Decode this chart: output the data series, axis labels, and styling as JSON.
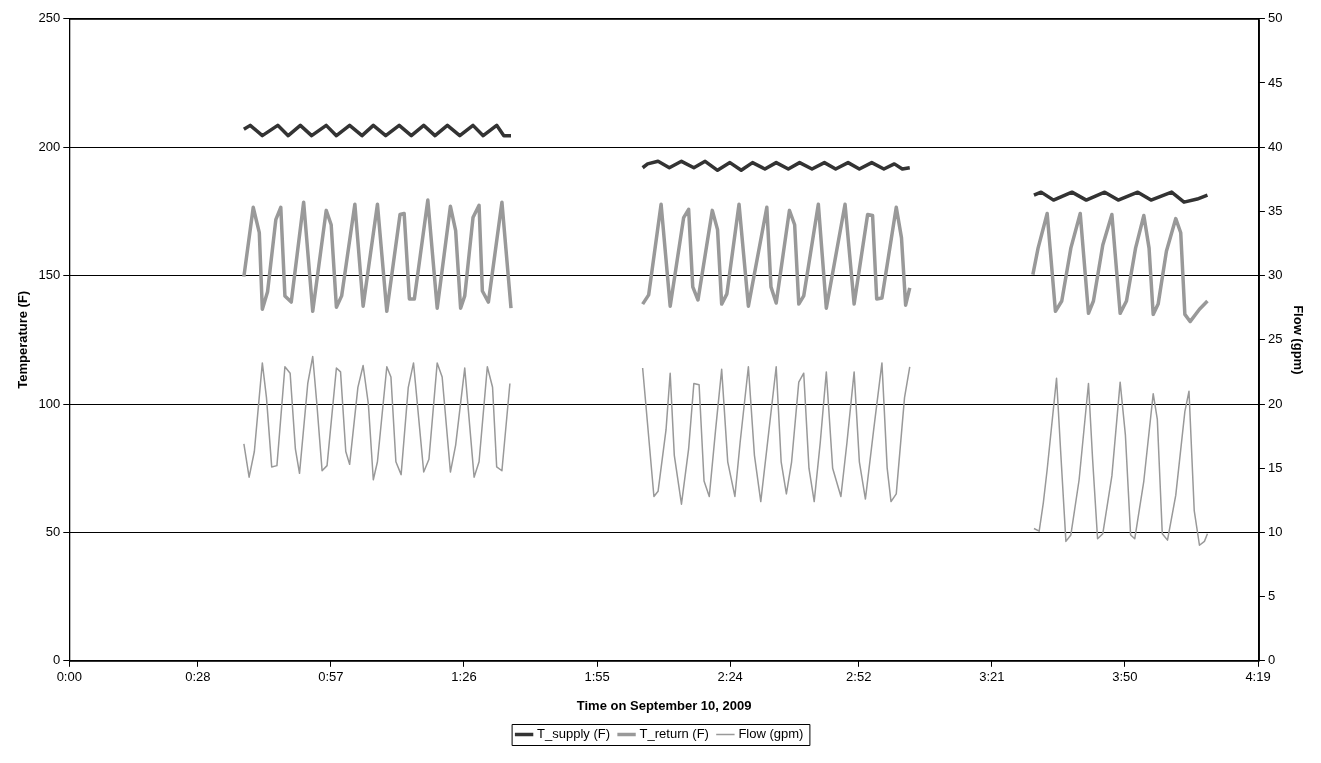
{
  "chart_data": {
    "type": "line",
    "xlabel": "Time on September 10, 2009",
    "ylabel": "Temperature (F)",
    "y2label": "Flow (gpm)",
    "xlim": [
      0,
      4.32
    ],
    "xticks": [
      {
        "value": 0,
        "label": "0:00"
      },
      {
        "value": 0.4667,
        "label": "0:28"
      },
      {
        "value": 0.95,
        "label": "0:57"
      },
      {
        "value": 1.4333,
        "label": "1:26"
      },
      {
        "value": 1.9167,
        "label": "1:55"
      },
      {
        "value": 2.4,
        "label": "2:24"
      },
      {
        "value": 2.8667,
        "label": "2:52"
      },
      {
        "value": 3.35,
        "label": "3:21"
      },
      {
        "value": 3.8333,
        "label": "3:50"
      },
      {
        "value": 4.3167,
        "label": "4:19"
      }
    ],
    "ylim": [
      0,
      250
    ],
    "yticks": [
      0,
      50,
      100,
      150,
      200,
      250
    ],
    "y2lim": [
      0,
      50
    ],
    "y2ticks": [
      0,
      5,
      10,
      15,
      20,
      25,
      30,
      35,
      40,
      45,
      50
    ],
    "grid": "y",
    "legend": "bottom",
    "marker": "none",
    "series": [
      {
        "name": "T_supply (F)",
        "color": "#333333",
        "x": [
          0.634,
          0.657,
          0.701,
          0.757,
          0.795,
          0.839,
          0.88,
          0.933,
          0.97,
          1.018,
          1.063,
          1.104,
          1.149,
          1.198,
          1.242,
          1.287,
          1.328,
          1.373,
          1.418,
          1.466,
          1.503,
          1.552,
          1.578,
          1.604,
          1.8,
          2.082,
          2.1,
          2.138,
          2.179,
          2.223,
          2.268,
          2.309,
          2.354,
          2.399,
          2.44,
          2.481,
          2.526,
          2.567,
          2.611,
          2.652,
          2.697,
          2.742,
          2.783,
          2.828,
          2.869,
          2.914,
          2.958,
          2.996,
          3.025,
          3.052,
          3.2,
          3.503,
          3.529,
          3.574,
          3.641,
          3.693,
          3.76,
          3.809,
          3.88,
          3.928,
          4.003,
          4.048,
          4.096,
          4.133
        ],
        "values": [
          207,
          208.5,
          204.5,
          208.5,
          204.5,
          208.5,
          204.5,
          208.5,
          204.5,
          208.5,
          204.5,
          208.5,
          204.5,
          208.5,
          204.5,
          208.5,
          204.5,
          208.5,
          204.5,
          208.5,
          204.5,
          208.5,
          204.5,
          204.5,
          null,
          192,
          193.5,
          194.5,
          192,
          194.5,
          192,
          194.5,
          191,
          194,
          191,
          194,
          191.5,
          194,
          191.5,
          194,
          191.5,
          194,
          191.5,
          194,
          191.5,
          194,
          191.5,
          193.5,
          191.5,
          192,
          null,
          181.3,
          182.5,
          179.4,
          182.5,
          179.4,
          182.5,
          179.4,
          182.5,
          179.4,
          182.5,
          178.6,
          179.8,
          181.3
        ]
      },
      {
        "name": "T_return (F)",
        "color": "#999999",
        "x": [
          0.634,
          0.668,
          0.69,
          0.701,
          0.72,
          0.75,
          0.768,
          0.783,
          0.806,
          0.851,
          0.884,
          0.933,
          0.951,
          0.97,
          0.989,
          1.037,
          1.067,
          1.119,
          1.153,
          1.201,
          1.216,
          1.235,
          1.253,
          1.302,
          1.336,
          1.384,
          1.403,
          1.421,
          1.436,
          1.466,
          1.488,
          1.5,
          1.522,
          1.571,
          1.604,
          1.8,
          2.082,
          2.104,
          2.149,
          2.182,
          2.231,
          2.249,
          2.264,
          2.283,
          2.335,
          2.354,
          2.369,
          2.388,
          2.432,
          2.466,
          2.533,
          2.548,
          2.567,
          2.615,
          2.634,
          2.649,
          2.667,
          2.72,
          2.749,
          2.817,
          2.85,
          2.899,
          2.917,
          2.932,
          2.951,
          3.003,
          3.022,
          3.037,
          3.052,
          3.2,
          3.499,
          3.518,
          3.551,
          3.581,
          3.604,
          3.637,
          3.671,
          3.701,
          3.719,
          3.753,
          3.786,
          3.816,
          3.839,
          3.872,
          3.902,
          3.921,
          3.936,
          3.954,
          3.984,
          4.018,
          4.036,
          4.051,
          4.07,
          4.104,
          4.133
        ],
        "values": [
          149.6,
          176.6,
          166.7,
          136.9,
          143.7,
          171.8,
          176.6,
          142.1,
          139.7,
          178.6,
          136.1,
          175.4,
          169.8,
          137.7,
          142.1,
          177.8,
          138.1,
          177.8,
          136.1,
          173.8,
          174.2,
          140.9,
          140.9,
          179.4,
          137.3,
          177,
          167.5,
          137.3,
          142.1,
          172.6,
          177.4,
          144,
          139.7,
          178.6,
          137.3,
          null,
          138.9,
          142.5,
          177.8,
          138.1,
          172.6,
          175.8,
          145.6,
          140.5,
          175.4,
          167.9,
          138.9,
          142.9,
          177.8,
          138.1,
          176.6,
          145.6,
          139.3,
          175.4,
          169.8,
          138.9,
          142.1,
          177.8,
          137.3,
          177.8,
          138.9,
          173.8,
          173.4,
          140.9,
          141.3,
          176.6,
          164.7,
          138.5,
          145.2,
          null,
          150.4,
          160.7,
          174.2,
          136.1,
          140.1,
          160.7,
          174.2,
          135.3,
          140.1,
          161.9,
          173.8,
          135.3,
          140.1,
          160.7,
          173.4,
          160.7,
          134.9,
          138.9,
          159.5,
          172.2,
          166.7,
          134.9,
          132.1,
          136.9,
          140.1
        ]
      },
      {
        "name": "Flow (gpm)",
        "color": "#999999",
        "axis": "y2",
        "x": [
          0.634,
          0.653,
          0.672,
          0.701,
          0.716,
          0.735,
          0.754,
          0.783,
          0.802,
          0.821,
          0.836,
          0.866,
          0.884,
          0.899,
          0.918,
          0.936,
          0.97,
          0.985,
          1.004,
          1.018,
          1.048,
          1.067,
          1.086,
          1.104,
          1.119,
          1.153,
          1.168,
          1.186,
          1.205,
          1.231,
          1.25,
          1.287,
          1.306,
          1.336,
          1.354,
          1.384,
          1.403,
          1.436,
          1.47,
          1.488,
          1.518,
          1.537,
          1.552,
          1.571,
          1.6,
          1.8,
          2.082,
          2.123,
          2.138,
          2.167,
          2.182,
          2.197,
          2.223,
          2.249,
          2.268,
          2.287,
          2.305,
          2.324,
          2.347,
          2.369,
          2.391,
          2.417,
          2.436,
          2.466,
          2.488,
          2.511,
          2.533,
          2.567,
          2.585,
          2.604,
          2.623,
          2.649,
          2.667,
          2.686,
          2.705,
          2.727,
          2.749,
          2.772,
          2.802,
          2.824,
          2.85,
          2.869,
          2.891,
          2.921,
          2.951,
          2.97,
          2.984,
          3.003,
          3.033,
          3.052,
          3.2,
          3.503,
          3.522,
          3.537,
          3.551,
          3.585,
          3.6,
          3.619,
          3.637,
          3.667,
          3.701,
          3.716,
          3.734,
          3.753,
          3.786,
          3.816,
          3.835,
          3.854,
          3.869,
          3.902,
          3.936,
          3.951,
          3.969,
          3.988,
          4.018,
          4.051,
          4.066,
          4.085,
          4.104,
          4.122,
          4.133
        ],
        "values": [
          16.9,
          14.3,
          16.3,
          23.2,
          20.5,
          15.1,
          15.2,
          22.9,
          22.4,
          16.5,
          14.6,
          21.6,
          23.7,
          20,
          14.8,
          15.2,
          22.8,
          22.5,
          16.3,
          15.3,
          21.3,
          23,
          20,
          14.1,
          15.5,
          22.9,
          22.1,
          15.5,
          14.5,
          21.3,
          23.2,
          14.7,
          15.7,
          23.2,
          22.1,
          14.7,
          16.8,
          22.8,
          14.3,
          15.5,
          22.9,
          21.3,
          15.1,
          14.8,
          21.6,
          null,
          22.8,
          12.8,
          13.2,
          18,
          22.4,
          16,
          12.2,
          16.5,
          21.6,
          21.5,
          14,
          12.8,
          18,
          22.7,
          15.5,
          12.8,
          17,
          22.9,
          16,
          12.4,
          16.5,
          22.9,
          15.5,
          13,
          15.5,
          21.7,
          22.4,
          15,
          12.4,
          17,
          22.5,
          15,
          12.8,
          17,
          22.5,
          15.5,
          12.6,
          18,
          23.2,
          15,
          12.4,
          13,
          20.5,
          22.9,
          null,
          10.3,
          10.1,
          12.3,
          14.9,
          22,
          16.3,
          9.3,
          9.8,
          14.1,
          21.6,
          15.7,
          9.5,
          9.9,
          14.4,
          21.7,
          17.6,
          9.8,
          9.5,
          14,
          20.8,
          18.8,
          9.9,
          9.4,
          12.9,
          19.4,
          21,
          11.7,
          9,
          9.3,
          9.9
        ]
      }
    ]
  }
}
